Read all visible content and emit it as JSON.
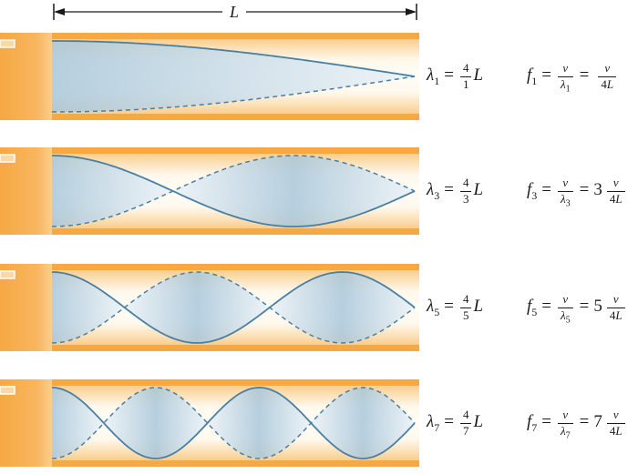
{
  "figure": {
    "length_label": "L"
  },
  "colors": {
    "tube_wall": "#F6A843",
    "wave_stroke": "#4A7FA3",
    "wave_fill_dark": "#A9C7DB",
    "wave_fill_light": "#EAF2F7",
    "dimension": "#1a1a1a"
  },
  "rows": [
    {
      "harmonic": 1,
      "lambda_base": "λ",
      "lambda_sub": "1",
      "eq_sign": "=",
      "lf_num": "4",
      "lf_den": "1",
      "lambda_post": "L",
      "f_base": "f",
      "f_sub": "1",
      "feq_sign1": "=",
      "f1_num": "v",
      "f1_den_base": "λ",
      "f1_den_sub": "1",
      "feq_sign2": "=",
      "f_coef": "",
      "f2_num": "v",
      "f2_den_coef": "4",
      "f2_den_var": "L"
    },
    {
      "harmonic": 3,
      "lambda_base": "λ",
      "lambda_sub": "3",
      "eq_sign": "=",
      "lf_num": "4",
      "lf_den": "3",
      "lambda_post": "L",
      "f_base": "f",
      "f_sub": "3",
      "feq_sign1": "=",
      "f1_num": "v",
      "f1_den_base": "λ",
      "f1_den_sub": "3",
      "feq_sign2": "=",
      "f_coef": "3",
      "f2_num": "v",
      "f2_den_coef": "4",
      "f2_den_var": "L"
    },
    {
      "harmonic": 5,
      "lambda_base": "λ",
      "lambda_sub": "5",
      "eq_sign": "=",
      "lf_num": "4",
      "lf_den": "5",
      "lambda_post": "L",
      "f_base": "f",
      "f_sub": "5",
      "feq_sign1": "=",
      "f1_num": "v",
      "f1_den_base": "λ",
      "f1_den_sub": "5",
      "feq_sign2": "=",
      "f_coef": "5",
      "f2_num": "v",
      "f2_den_coef": "4",
      "f2_den_var": "L"
    },
    {
      "harmonic": 7,
      "lambda_base": "λ",
      "lambda_sub": "7",
      "eq_sign": "=",
      "lf_num": "4",
      "lf_den": "7",
      "lambda_post": "L",
      "f_base": "f",
      "f_sub": "7",
      "feq_sign1": "=",
      "f1_num": "v",
      "f1_den_base": "λ",
      "f1_den_sub": "7",
      "feq_sign2": "=",
      "f_coef": "7",
      "f2_num": "v",
      "f2_den_coef": "4",
      "f2_den_var": "L"
    }
  ]
}
